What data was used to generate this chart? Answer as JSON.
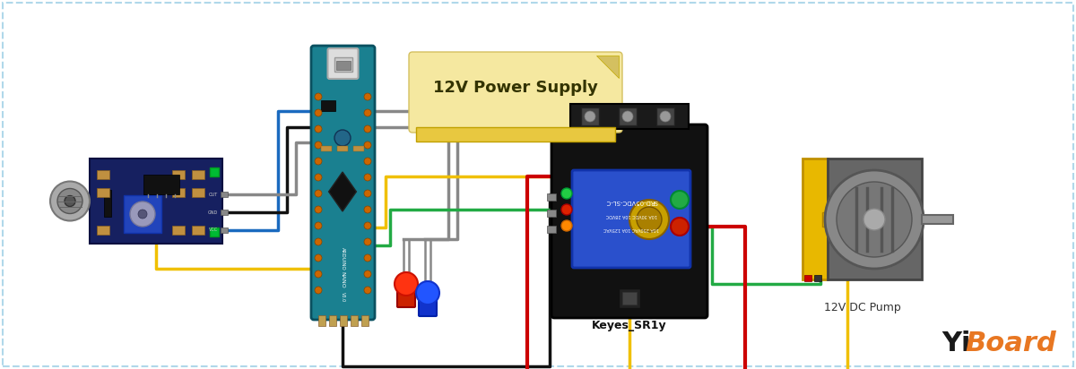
{
  "bg_color": "#ffffff",
  "border_color": "#b0d8ea",
  "logo_yi": "Yi",
  "logo_board": "Board",
  "logo_color_yi": "#1a1a1a",
  "logo_color_board": "#e87722",
  "label_12v_pump": "12V DC Pump",
  "label_12v_supply": "12V Power Supply",
  "label_relay": "Keyes_SR1y",
  "wire_colors": {
    "black": "#111111",
    "blue": "#1a6abf",
    "yellow": "#f0c000",
    "red": "#cc0000",
    "green": "#22aa44",
    "gray": "#888888",
    "white": "#f0f0f0",
    "dark_gray": "#555753"
  },
  "figsize": [
    12.0,
    4.12
  ],
  "dpi": 100
}
